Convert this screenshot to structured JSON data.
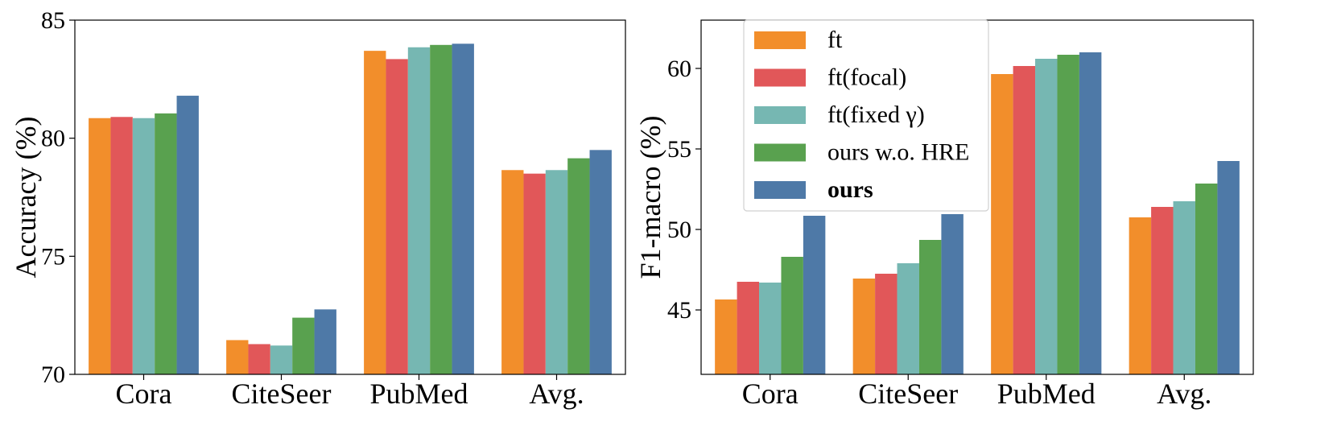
{
  "chart_data": [
    {
      "type": "bar",
      "title": "",
      "xlabel": "",
      "ylabel": "Accuracy (%)",
      "ylim": [
        70,
        85
      ],
      "yticks": [
        70,
        75,
        80,
        85
      ],
      "categories": [
        "Cora",
        "CiteSeer",
        "PubMed",
        "Avg."
      ],
      "series": [
        {
          "name": "ft",
          "color": "#f28e2b",
          "values": [
            80.85,
            71.45,
            83.7,
            78.65
          ]
        },
        {
          "name": "ft(focal)",
          "color": "#e15759",
          "values": [
            80.9,
            71.28,
            83.35,
            78.5
          ]
        },
        {
          "name": "ft(fixed γ)",
          "color": "#76b7b2",
          "values": [
            80.85,
            71.22,
            83.85,
            78.65
          ]
        },
        {
          "name": "ours w.o. HRE",
          "color": "#59a14f",
          "values": [
            81.05,
            72.4,
            83.95,
            79.15
          ]
        },
        {
          "name": "ours",
          "color": "#4e79a7",
          "values": [
            81.8,
            72.75,
            84.0,
            79.5
          ]
        }
      ],
      "grid": false,
      "legend": "none"
    },
    {
      "type": "bar",
      "title": "",
      "xlabel": "",
      "ylabel": "F1-macro (%)",
      "ylim": [
        41,
        63
      ],
      "yticks": [
        45,
        50,
        55,
        60
      ],
      "categories": [
        "Cora",
        "CiteSeer",
        "PubMed",
        "Avg."
      ],
      "series": [
        {
          "name": "ft",
          "color": "#f28e2b",
          "values": [
            45.65,
            46.95,
            59.65,
            50.75
          ]
        },
        {
          "name": "ft(focal)",
          "color": "#e15759",
          "values": [
            46.75,
            47.25,
            60.15,
            51.4
          ]
        },
        {
          "name": "ft(fixed γ)",
          "color": "#76b7b2",
          "values": [
            46.7,
            47.9,
            60.6,
            51.75
          ]
        },
        {
          "name": "ours w.o. HRE",
          "color": "#59a14f",
          "values": [
            48.3,
            49.35,
            60.85,
            52.85
          ]
        },
        {
          "name": "ours",
          "color": "#4e79a7",
          "values": [
            50.85,
            50.95,
            61.0,
            54.25
          ]
        }
      ],
      "grid": false,
      "legend": "top-left"
    }
  ]
}
